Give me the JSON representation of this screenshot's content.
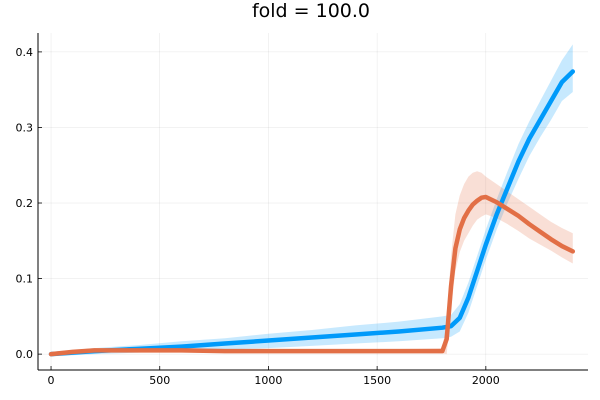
{
  "chart_data": {
    "type": "line",
    "title": "fold = 100.0",
    "xlabel": "",
    "ylabel": "",
    "xlim": [
      -60,
      2470
    ],
    "ylim": [
      -0.021,
      0.425
    ],
    "grid": true,
    "legend": "none",
    "xticks": [
      {
        "value": 0,
        "label": "0"
      },
      {
        "value": 500,
        "label": "500"
      },
      {
        "value": 1000,
        "label": "1000"
      },
      {
        "value": 1500,
        "label": "1500"
      },
      {
        "value": 2000,
        "label": "2000"
      }
    ],
    "yticks": [
      {
        "value": 0.0,
        "label": "0.0"
      },
      {
        "value": 0.1,
        "label": "0.1"
      },
      {
        "value": 0.2,
        "label": "0.2"
      },
      {
        "value": 0.3,
        "label": "0.3"
      },
      {
        "value": 0.4,
        "label": "0.4"
      }
    ],
    "series": [
      {
        "color": "#009AFA",
        "band_color": "#009AFA",
        "x": [
          0,
          200,
          400,
          600,
          800,
          1000,
          1200,
          1400,
          1600,
          1800,
          1840,
          1880,
          1920,
          1960,
          2000,
          2050,
          2100,
          2150,
          2200,
          2250,
          2300,
          2350,
          2400
        ],
        "values": [
          0.0,
          0.004,
          0.007,
          0.01,
          0.014,
          0.018,
          0.022,
          0.026,
          0.03,
          0.035,
          0.037,
          0.048,
          0.075,
          0.11,
          0.145,
          0.185,
          0.22,
          0.255,
          0.285,
          0.31,
          0.335,
          0.36,
          0.374
        ],
        "band_lower": [
          -0.003,
          0.0,
          0.002,
          0.004,
          0.006,
          0.008,
          0.011,
          0.014,
          0.017,
          0.021,
          0.023,
          0.03,
          0.055,
          0.09,
          0.125,
          0.165,
          0.2,
          0.232,
          0.262,
          0.287,
          0.31,
          0.335,
          0.347
        ],
        "band_upper": [
          0.003,
          0.008,
          0.012,
          0.017,
          0.021,
          0.027,
          0.032,
          0.038,
          0.043,
          0.05,
          0.052,
          0.066,
          0.095,
          0.13,
          0.165,
          0.205,
          0.242,
          0.278,
          0.308,
          0.335,
          0.362,
          0.389,
          0.41
        ]
      },
      {
        "color": "#E26F46",
        "band_color": "#E26F46",
        "x": [
          0,
          100,
          200,
          300,
          400,
          600,
          800,
          1000,
          1200,
          1400,
          1600,
          1800,
          1820,
          1840,
          1860,
          1880,
          1900,
          1920,
          1940,
          1960,
          1980,
          2000,
          2050,
          2100,
          2150,
          2200,
          2250,
          2300,
          2350,
          2400
        ],
        "values": [
          0.0,
          0.003,
          0.005,
          0.005,
          0.005,
          0.005,
          0.004,
          0.004,
          0.004,
          0.004,
          0.004,
          0.004,
          0.02,
          0.09,
          0.14,
          0.165,
          0.18,
          0.19,
          0.198,
          0.203,
          0.207,
          0.208,
          0.201,
          0.192,
          0.183,
          0.172,
          0.162,
          0.152,
          0.143,
          0.136
        ],
        "band_lower": [
          -0.002,
          0.001,
          0.002,
          0.003,
          0.003,
          0.003,
          0.002,
          0.002,
          0.002,
          0.002,
          0.002,
          0.001,
          0.0,
          0.06,
          0.11,
          0.135,
          0.15,
          0.16,
          0.17,
          0.178,
          0.182,
          0.185,
          0.18,
          0.172,
          0.163,
          0.153,
          0.145,
          0.137,
          0.128,
          0.12
        ],
        "band_upper": [
          0.002,
          0.005,
          0.008,
          0.008,
          0.008,
          0.008,
          0.007,
          0.007,
          0.007,
          0.007,
          0.007,
          0.008,
          0.045,
          0.13,
          0.185,
          0.21,
          0.225,
          0.235,
          0.24,
          0.242,
          0.24,
          0.235,
          0.225,
          0.215,
          0.205,
          0.195,
          0.185,
          0.175,
          0.167,
          0.16
        ]
      }
    ]
  }
}
